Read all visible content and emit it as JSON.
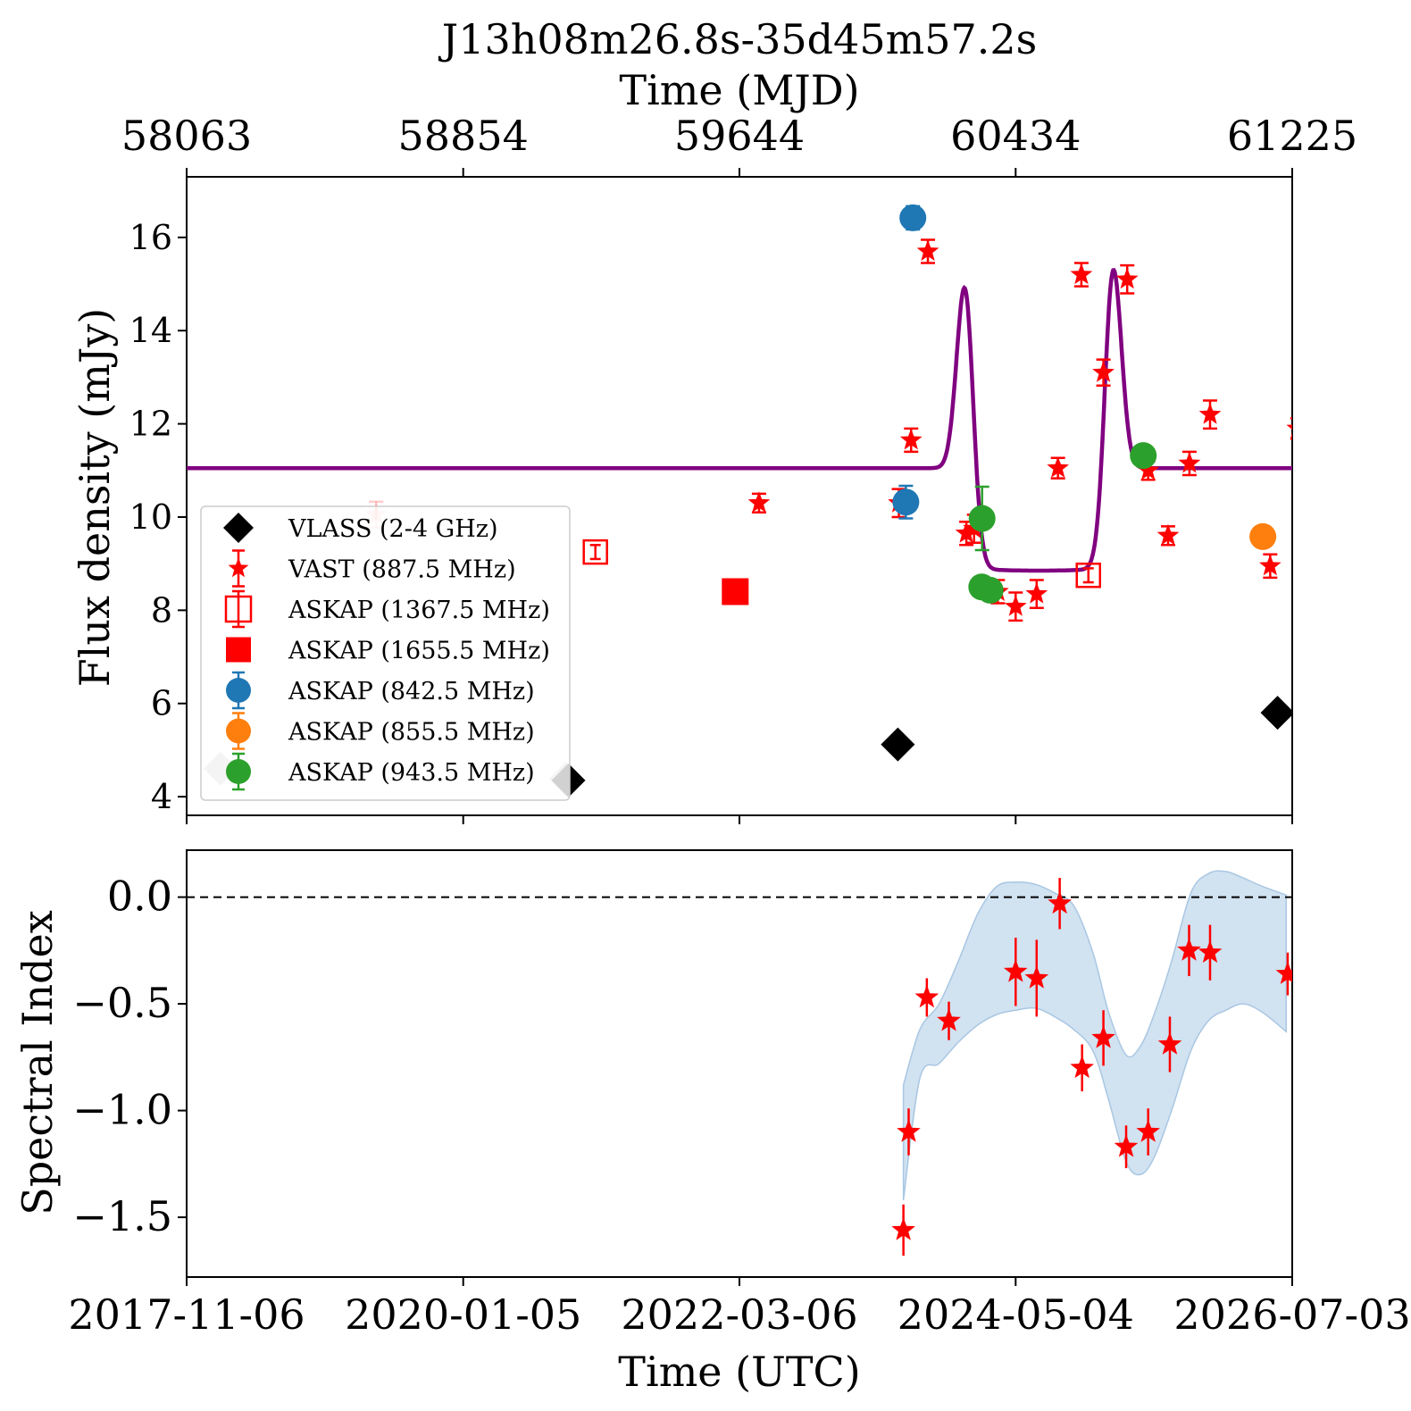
{
  "chart_data": [
    {
      "type": "scatter",
      "panel": "top",
      "title": "J13h08m26.8s-35d45m57.2s",
      "top_axis": {
        "label": "Time (MJD)",
        "ticks": [
          "58063",
          "58854",
          "59644",
          "60434",
          "61225"
        ]
      },
      "ylabel": "Flux density (mJy)",
      "ylim": [
        3.6,
        17.3
      ],
      "xlim": [
        58063,
        61225
      ],
      "yticks": [
        4,
        6,
        8,
        10,
        12,
        14,
        16
      ],
      "legend_position": "lower-left",
      "model_line": {
        "color": "#800080",
        "baseline": 11.05,
        "dip_level": 8.85,
        "peaks": [
          {
            "mjd": 60290,
            "flux": 15.15
          },
          {
            "mjd": 60712,
            "flux": 15.5
          }
        ],
        "dip_range": [
          60310,
          60690
        ]
      },
      "series": [
        {
          "name": "VLASS (2-4 GHz)",
          "marker": "diamond",
          "color": "#000000",
          "points": [
            {
              "x": 58160,
              "y": 4.6,
              "faded": true
            },
            {
              "x": 59148,
              "y": 4.38,
              "faded": true
            },
            {
              "x": 59155,
              "y": 4.35
            },
            {
              "x": 60097,
              "y": 5.12
            },
            {
              "x": 61183,
              "y": 5.8
            }
          ]
        },
        {
          "name": "VAST (887.5 MHz)",
          "marker": "star",
          "color": "#ff0000",
          "points": [
            {
              "x": 58605,
              "y": 10.05,
              "e": 0.28,
              "faded": true
            },
            {
              "x": 59700,
              "y": 10.3,
              "e": 0.2
            },
            {
              "x": 60100,
              "y": 10.3,
              "e": 0.3
            },
            {
              "x": 60135,
              "y": 11.65,
              "e": 0.25
            },
            {
              "x": 60183,
              "y": 15.7,
              "e": 0.25
            },
            {
              "x": 60293,
              "y": 9.65,
              "e": 0.25
            },
            {
              "x": 60315,
              "y": 9.75,
              "e": 0.3
            },
            {
              "x": 60383,
              "y": 8.4,
              "e": 0.25
            },
            {
              "x": 60434,
              "y": 8.08,
              "e": 0.3
            },
            {
              "x": 60494,
              "y": 8.35,
              "e": 0.3
            },
            {
              "x": 60555,
              "y": 11.05,
              "e": 0.22
            },
            {
              "x": 60622,
              "y": 15.2,
              "e": 0.25
            },
            {
              "x": 60685,
              "y": 13.1,
              "e": 0.28
            },
            {
              "x": 60753,
              "y": 15.1,
              "e": 0.3
            },
            {
              "x": 60813,
              "y": 11.0,
              "e": 0.2
            },
            {
              "x": 60870,
              "y": 9.6,
              "e": 0.2
            },
            {
              "x": 60931,
              "y": 11.15,
              "e": 0.25
            },
            {
              "x": 60990,
              "y": 12.2,
              "e": 0.3
            },
            {
              "x": 61162,
              "y": 8.95,
              "e": 0.25
            },
            {
              "x": 61240,
              "y": 11.9,
              "e": 0.22
            }
          ]
        },
        {
          "name": "ASKAP (1367.5 MHz)",
          "marker": "square-open",
          "color": "#ff0000",
          "points": [
            {
              "x": 59232,
              "y": 9.25,
              "e": 0.15
            },
            {
              "x": 60642,
              "y": 8.75,
              "e": 0.15
            }
          ]
        },
        {
          "name": "ASKAP (1655.5 MHz)",
          "marker": "square",
          "color": "#ff0000",
          "points": [
            {
              "x": 59632,
              "y": 8.4
            }
          ]
        },
        {
          "name": "ASKAP (842.5 MHz)",
          "marker": "circle",
          "color": "#1f77b4",
          "points": [
            {
              "x": 60120,
              "y": 10.32,
              "e": 0.35
            },
            {
              "x": 60140,
              "y": 16.42,
              "e": 0.25
            }
          ]
        },
        {
          "name": "ASKAP (855.5 MHz)",
          "marker": "circle",
          "color": "#ff7f0e",
          "points": [
            {
              "x": 61141,
              "y": 9.58
            }
          ]
        },
        {
          "name": "ASKAP (943.5 MHz)",
          "marker": "circle",
          "color": "#2ca02c",
          "points": [
            {
              "x": 60338,
              "y": 9.97,
              "e": 0.68
            },
            {
              "x": 60337,
              "y": 8.5
            },
            {
              "x": 60361,
              "y": 8.43
            },
            {
              "x": 60799,
              "y": 11.32
            }
          ]
        }
      ]
    },
    {
      "type": "scatter",
      "panel": "bottom",
      "xlabel": "Time (UTC)",
      "ylabel": "Spectral Index",
      "xticks": [
        "2017-11-06",
        "2020-01-05",
        "2022-03-06",
        "2024-05-04",
        "2026-07-03"
      ],
      "yticks": [
        "0.0",
        "−0.5",
        "−1.0",
        "−1.5"
      ],
      "ylim": [
        -1.78,
        0.22
      ],
      "reference_line": 0.0,
      "band_color": "#c6dbed",
      "band": [
        {
          "x": 60113,
          "lo": -1.42,
          "hi": -0.88
        },
        {
          "x": 60160,
          "lo": -0.85,
          "hi": -0.62
        },
        {
          "x": 60215,
          "lo": -0.78,
          "hi": -0.5
        },
        {
          "x": 60270,
          "lo": -0.68,
          "hi": -0.3
        },
        {
          "x": 60325,
          "lo": -0.6,
          "hi": -0.08
        },
        {
          "x": 60380,
          "lo": -0.55,
          "hi": 0.05
        },
        {
          "x": 60434,
          "lo": -0.53,
          "hi": 0.07
        },
        {
          "x": 60490,
          "lo": -0.52,
          "hi": 0.06
        },
        {
          "x": 60545,
          "lo": -0.56,
          "hi": 0.02
        },
        {
          "x": 60600,
          "lo": -0.62,
          "hi": -0.04
        },
        {
          "x": 60655,
          "lo": -0.72,
          "hi": -0.26
        },
        {
          "x": 60700,
          "lo": -0.95,
          "hi": -0.54
        },
        {
          "x": 60750,
          "lo": -1.24,
          "hi": -0.74
        },
        {
          "x": 60790,
          "lo": -1.3,
          "hi": -0.7
        },
        {
          "x": 60830,
          "lo": -1.22,
          "hi": -0.55
        },
        {
          "x": 60880,
          "lo": -1.0,
          "hi": -0.3
        },
        {
          "x": 60935,
          "lo": -0.72,
          "hi": 0.02
        },
        {
          "x": 60985,
          "lo": -0.58,
          "hi": 0.11
        },
        {
          "x": 61035,
          "lo": -0.53,
          "hi": 0.12
        },
        {
          "x": 61085,
          "lo": -0.5,
          "hi": 0.09
        },
        {
          "x": 61140,
          "lo": -0.54,
          "hi": 0.05
        },
        {
          "x": 61208,
          "lo": -0.63,
          "hi": 0.01
        }
      ],
      "points": [
        {
          "x": 60113,
          "y": -1.56,
          "e": 0.12
        },
        {
          "x": 60128,
          "y": -1.1,
          "e": 0.11
        },
        {
          "x": 60180,
          "y": -0.47,
          "e": 0.09
        },
        {
          "x": 60243,
          "y": -0.58,
          "e": 0.09
        },
        {
          "x": 60434,
          "y": -0.35,
          "e": 0.16
        },
        {
          "x": 60494,
          "y": -0.38,
          "e": 0.18
        },
        {
          "x": 60560,
          "y": -0.03,
          "e": 0.12
        },
        {
          "x": 60624,
          "y": -0.8,
          "e": 0.11
        },
        {
          "x": 60685,
          "y": -0.66,
          "e": 0.13
        },
        {
          "x": 60750,
          "y": -1.17,
          "e": 0.1
        },
        {
          "x": 60813,
          "y": -1.1,
          "e": 0.11
        },
        {
          "x": 60875,
          "y": -0.69,
          "e": 0.13
        },
        {
          "x": 60930,
          "y": -0.25,
          "e": 0.12
        },
        {
          "x": 60990,
          "y": -0.26,
          "e": 0.13
        },
        {
          "x": 61212,
          "y": -0.36,
          "e": 0.1
        }
      ]
    }
  ]
}
